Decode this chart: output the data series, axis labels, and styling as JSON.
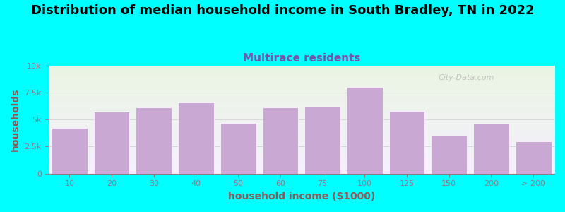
{
  "title": "Distribution of median household income in South Bradley, TN in 2022",
  "subtitle": "Multirace residents",
  "xlabel": "household income ($1000)",
  "ylabel": "households",
  "background_color": "#00FFFF",
  "plot_bg_top": "#eaf5e2",
  "plot_bg_bottom": "#f5f0ff",
  "bar_color": "#C9A8D4",
  "bar_edge_color": "#ffffff",
  "categories": [
    "10",
    "20",
    "30",
    "40",
    "50",
    "60",
    "75",
    "100",
    "125",
    "150",
    "200",
    "> 200"
  ],
  "values": [
    4200,
    5700,
    6100,
    6600,
    4700,
    6100,
    6200,
    8000,
    5800,
    3600,
    4600,
    3000
  ],
  "ylim": [
    0,
    10000
  ],
  "yticks": [
    0,
    2500,
    5000,
    7500,
    10000
  ],
  "ytick_labels": [
    "0",
    "2.5k",
    "5k",
    "7.5k",
    "10k"
  ],
  "title_fontsize": 13,
  "subtitle_fontsize": 11,
  "subtitle_color": "#7755AA",
  "axis_color": "#8B7B8B",
  "tick_label_color": "#8B5A5A",
  "watermark": "City-Data.com"
}
